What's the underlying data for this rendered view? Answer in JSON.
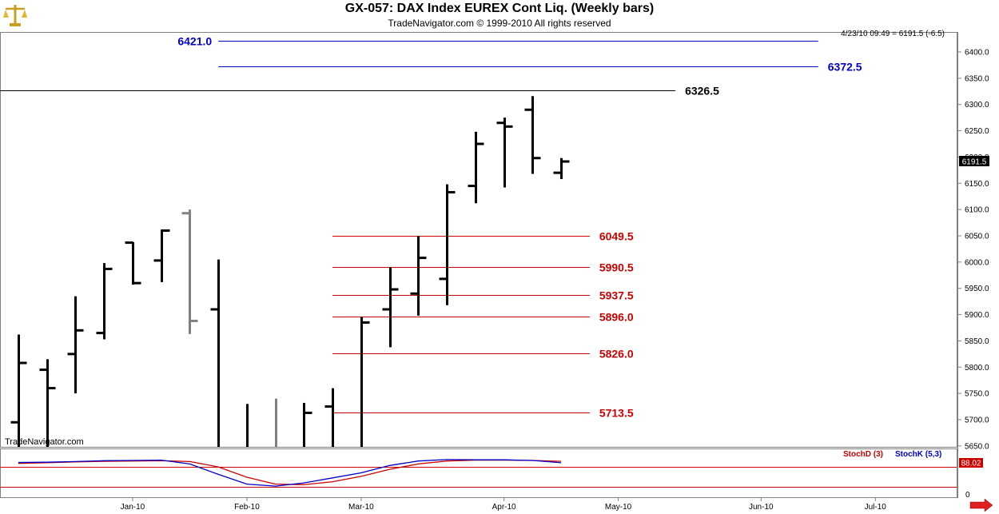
{
  "header": {
    "title": "GX-057:  DAX Index EUREX Cont Liq.  (Weekly bars)",
    "subtitle": "TradeNavigator.com © 1999-2010 All rights reserved"
  },
  "colors": {
    "price_bar": "#000000",
    "gray_bar": "#808080",
    "resistance": "#0000cc",
    "support": "#cc0000",
    "stochD": "#cc0000",
    "stochK": "#0000cc"
  },
  "icons": {
    "logo": "scales-logo-icon",
    "scroll": "right-arrow-icon"
  },
  "chart_data": {
    "type": "ohlc",
    "status_line": "4/23/10 09:49 = 6191.5 (-6.5)",
    "last_price_label": "6191.5",
    "watermark": "TradeNavigator.com",
    "ylim": [
      5630,
      6450
    ],
    "y_ticks": [
      5650,
      5700,
      5750,
      5800,
      5850,
      5900,
      5950,
      6000,
      6050,
      6100,
      6150,
      6200,
      6250,
      6300,
      6350,
      6400
    ],
    "y_tick_labels": [
      "5650.0",
      "5700.0",
      "5750.0",
      "5800.0",
      "5850.0",
      "5900.0",
      "5950.0",
      "6000.0",
      "6050.0",
      "6100.0",
      "6150.0",
      "6200.0",
      "6250.0",
      "6300.0",
      "6350.0",
      "6400.0"
    ],
    "x_axis": {
      "date_range": [
        "2009-12-07",
        "2010-07-12"
      ],
      "labels": [
        {
          "label": "Jan-10",
          "date": "2010-01-04"
        },
        {
          "label": "Feb-10",
          "date": "2010-02-01"
        },
        {
          "label": "Mar-10",
          "date": "2010-03-01"
        },
        {
          "label": "Apr-10",
          "date": "2010-04-05"
        },
        {
          "label": "May-10",
          "date": "2010-05-03"
        },
        {
          "label": "Jun-10",
          "date": "2010-06-07"
        },
        {
          "label": "Jul-10",
          "date": "2010-07-05"
        }
      ]
    },
    "bars": [
      {
        "date": "2009-12-07",
        "open": 5695,
        "high": 5862,
        "low": 5630,
        "close": 5808
      },
      {
        "date": "2009-12-14",
        "open": 5795,
        "high": 5815,
        "low": 5640,
        "close": 5760
      },
      {
        "date": "2009-12-21",
        "open": 5825,
        "high": 5935,
        "low": 5750,
        "close": 5870
      },
      {
        "date": "2009-12-28",
        "open": 5865,
        "high": 5998,
        "low": 5853,
        "close": 5987
      },
      {
        "date": "2010-01-04",
        "open": 6037,
        "high": 6038,
        "low": 5957,
        "close": 5960
      },
      {
        "date": "2010-01-11",
        "open": 6003,
        "high": 6062,
        "low": 5962,
        "close": 6060
      },
      {
        "date": "2010-01-18",
        "open": 6093,
        "high": 6100,
        "low": 5863,
        "close": 5888,
        "color": "gray"
      },
      {
        "date": "2010-01-25",
        "open": 5910,
        "high": 6005,
        "low": 5630,
        "close": 5630
      },
      {
        "date": "2010-02-01",
        "open": 5630,
        "high": 5730,
        "low": 5630,
        "close": 5630
      },
      {
        "date": "2010-02-08",
        "open": 5630,
        "high": 5740,
        "low": 5630,
        "close": 5630,
        "color": "gray"
      },
      {
        "date": "2010-02-15",
        "open": 5630,
        "high": 5732,
        "low": 5630,
        "close": 5713
      },
      {
        "date": "2010-02-22",
        "open": 5725,
        "high": 5760,
        "low": 5630,
        "close": 5630
      },
      {
        "date": "2010-03-01",
        "open": 5645,
        "high": 5896,
        "low": 5630,
        "close": 5885
      },
      {
        "date": "2010-03-08",
        "open": 5910,
        "high": 5990,
        "low": 5838,
        "close": 5948
      },
      {
        "date": "2010-03-15",
        "open": 5940,
        "high": 6050,
        "low": 5898,
        "close": 6008
      },
      {
        "date": "2010-03-22",
        "open": 5968,
        "high": 6148,
        "low": 5918,
        "close": 6133
      },
      {
        "date": "2010-03-29",
        "open": 6145,
        "high": 6248,
        "low": 6112,
        "close": 6225
      },
      {
        "date": "2010-04-05",
        "open": 6265,
        "high": 6275,
        "low": 6142,
        "close": 6258
      },
      {
        "date": "2010-04-12",
        "open": 6290,
        "high": 6316,
        "low": 6168,
        "close": 6198
      },
      {
        "date": "2010-04-19",
        "open": 6170,
        "high": 6198,
        "low": 6158,
        "close": 6191.5
      }
    ],
    "horizontal_levels": [
      {
        "value": 6421.0,
        "label": "6421.0",
        "color": "#0000cc",
        "from_date": "2010-01-25",
        "to_date": "2010-06-21",
        "label_pos": "left"
      },
      {
        "value": 6372.5,
        "label": "6372.5",
        "color": "#0000cc",
        "from_date": "2010-01-25",
        "to_date": "2010-06-21",
        "label_pos": "right"
      },
      {
        "value": 6326.5,
        "label": "6326.5",
        "color": "#000000",
        "from_date": "2009-12-07",
        "to_date": "2010-05-17",
        "label_pos": "right"
      },
      {
        "value": 6049.5,
        "label": "6049.5",
        "color": "#cc0000",
        "from_date": "2010-02-22",
        "to_date": "2010-04-26",
        "label_pos": "right"
      },
      {
        "value": 5990.5,
        "label": "5990.5",
        "color": "#cc0000",
        "from_date": "2010-02-22",
        "to_date": "2010-04-26",
        "label_pos": "right"
      },
      {
        "value": 5937.5,
        "label": "5937.5",
        "color": "#cc0000",
        "from_date": "2010-02-22",
        "to_date": "2010-04-26",
        "label_pos": "right"
      },
      {
        "value": 5896.0,
        "label": "5896.0",
        "color": "#cc0000",
        "from_date": "2010-02-22",
        "to_date": "2010-04-26",
        "label_pos": "right"
      },
      {
        "value": 5826.0,
        "label": "5826.0",
        "color": "#cc0000",
        "from_date": "2010-02-22",
        "to_date": "2010-04-26",
        "label_pos": "right"
      },
      {
        "value": 5713.5,
        "label": "5713.5",
        "color": "#cc0000",
        "from_date": "2010-02-22",
        "to_date": "2010-04-26",
        "label_pos": "right"
      }
    ],
    "indicator": {
      "legend": [
        {
          "name": "StochD (3)",
          "color": "#cc0000"
        },
        {
          "name": "StochK (5,3)",
          "color": "#0000cc"
        }
      ],
      "ylim": [
        0,
        100
      ],
      "last_value_label": "88.02",
      "zero_label": "0",
      "stochD": [
        82,
        84,
        87,
        89,
        90,
        91,
        88,
        70,
        35,
        12,
        10,
        20,
        38,
        62,
        80,
        90,
        93,
        93,
        92,
        89
      ],
      "stochK": [
        85,
        86,
        88,
        91,
        92,
        93,
        80,
        45,
        12,
        5,
        16,
        33,
        50,
        75,
        90,
        95,
        94,
        94,
        92,
        84
      ]
    }
  }
}
